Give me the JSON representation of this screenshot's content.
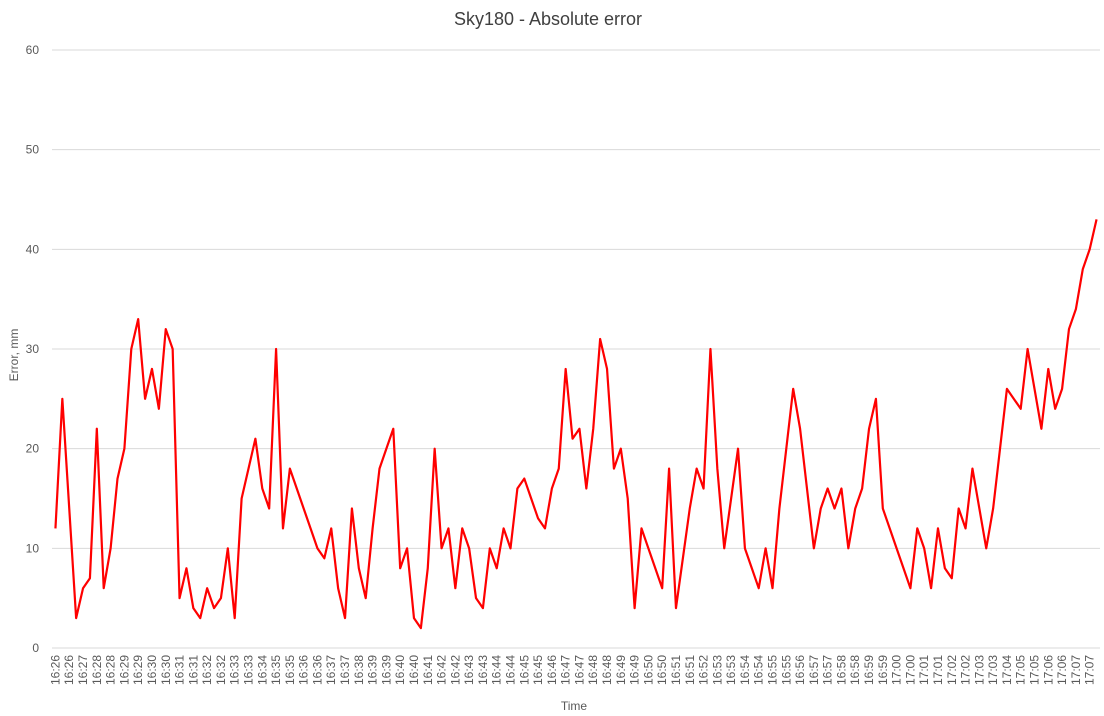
{
  "chart_data": {
    "type": "line",
    "title": "Sky180 - Absolute error",
    "x_label": "Time",
    "y_label": "Error, mm",
    "categories": [
      "16:26",
      null,
      "16:26",
      null,
      "16:27",
      null,
      "16:28",
      null,
      "16:28",
      null,
      "16:29",
      null,
      "16:29",
      null,
      "16:30",
      null,
      "16:30",
      null,
      "16:31",
      null,
      "16:31",
      null,
      "16:32",
      null,
      "16:32",
      null,
      "16:33",
      null,
      "16:33",
      null,
      "16:34",
      null,
      "16:35",
      null,
      "16:35",
      null,
      "16:36",
      null,
      "16:36",
      null,
      "16:37",
      null,
      "16:37",
      null,
      "16:38",
      null,
      "16:39",
      null,
      "16:39",
      null,
      "16:40",
      null,
      "16:40",
      null,
      "16:41",
      null,
      "16:42",
      null,
      "16:42",
      null,
      "16:43",
      null,
      "16:43",
      null,
      "16:44",
      null,
      "16:44",
      null,
      "16:45",
      null,
      "16:45",
      null,
      "16:46",
      null,
      "16:47",
      null,
      "16:47",
      null,
      "16:48",
      null,
      "16:48",
      null,
      "16:49",
      null,
      "16:49",
      null,
      "16:50",
      null,
      "16:50",
      null,
      "16:51",
      null,
      "16:51",
      null,
      "16:52",
      null,
      "16:53",
      null,
      "16:53",
      null,
      "16:54",
      null,
      "16:54",
      null,
      "16:55",
      null,
      "16:55",
      null,
      "16:56",
      null,
      "16:57",
      null,
      "16:57",
      null,
      "16:58",
      null,
      "16:58",
      null,
      "16:59",
      null,
      "16:59",
      null,
      "17:00",
      null,
      "17:00",
      null,
      "17:01",
      null,
      "17:01",
      null,
      "17:02",
      null,
      "17:02",
      null,
      "17:03",
      null,
      "17:03",
      null,
      "17:04",
      null,
      "17:05",
      null,
      "17:05",
      null,
      "17:06",
      null,
      "17:06",
      null,
      "17:07",
      null,
      "17:07",
      null
    ],
    "values": [
      12,
      25,
      14,
      3,
      6,
      7,
      22,
      6,
      10,
      17,
      20,
      30,
      33,
      25,
      28,
      24,
      32,
      30,
      5,
      8,
      4,
      3,
      6,
      4,
      5,
      10,
      3,
      15,
      18,
      21,
      16,
      14,
      30,
      12,
      18,
      16,
      14,
      12,
      10,
      9,
      12,
      6,
      3,
      14,
      8,
      5,
      12,
      18,
      20,
      22,
      8,
      10,
      3,
      2,
      8,
      20,
      10,
      12,
      6,
      12,
      10,
      5,
      4,
      10,
      8,
      12,
      10,
      16,
      17,
      15,
      13,
      12,
      16,
      18,
      28,
      21,
      22,
      16,
      22,
      31,
      28,
      18,
      20,
      15,
      4,
      12,
      10,
      8,
      6,
      18,
      4,
      9,
      14,
      18,
      16,
      30,
      18,
      10,
      15,
      20,
      10,
      8,
      6,
      10,
      6,
      14,
      20,
      26,
      22,
      16,
      10,
      14,
      16,
      14,
      16,
      10,
      14,
      16,
      22,
      25,
      14,
      12,
      10,
      8,
      6,
      12,
      10,
      6,
      12,
      8,
      7,
      14,
      12,
      18,
      14,
      10,
      14,
      20,
      26,
      25,
      24,
      30,
      26,
      22,
      28,
      24,
      26,
      32,
      34,
      38,
      40,
      43
    ],
    "color": "#ff0000",
    "ylim": [
      0,
      60
    ],
    "yticks": [
      0,
      10,
      20,
      30,
      40,
      50,
      60
    ],
    "grid": true
  }
}
